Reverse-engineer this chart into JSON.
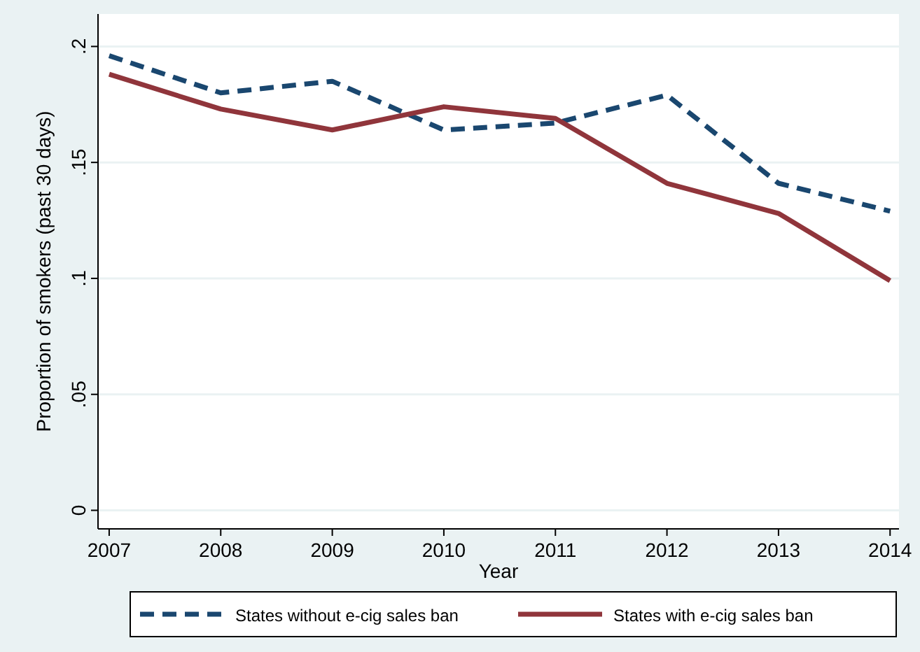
{
  "chart_data": {
    "type": "line",
    "xlabel": "Year",
    "ylabel": "Proportion of smokers (past 30 days)",
    "x": [
      2007,
      2008,
      2009,
      2010,
      2011,
      2012,
      2013,
      2014
    ],
    "xlim": [
      2006.9,
      2014.08
    ],
    "xticks": [
      2007,
      2008,
      2009,
      2010,
      2011,
      2012,
      2013,
      2014
    ],
    "ylim": [
      -0.008,
      0.214
    ],
    "yticks": [
      0,
      {
        "value": 0.05,
        "label": ".05"
      },
      {
        "value": 0.1,
        "label": ".1"
      },
      {
        "value": 0.15,
        "label": ".15"
      },
      {
        "value": 0.2,
        "label": ".2"
      }
    ],
    "grid": "y",
    "legend": "bottom",
    "series": [
      {
        "name": "States without e-cig sales ban",
        "color": "#1a476f",
        "line_style": "dashed",
        "values": [
          0.196,
          0.18,
          0.185,
          0.164,
          0.167,
          0.179,
          0.141,
          0.129
        ]
      },
      {
        "name": "States with e-cig sales ban",
        "color": "#90353b",
        "line_style": "solid",
        "values": [
          0.188,
          0.173,
          0.164,
          0.174,
          0.169,
          0.141,
          0.128,
          0.099
        ]
      }
    ]
  }
}
